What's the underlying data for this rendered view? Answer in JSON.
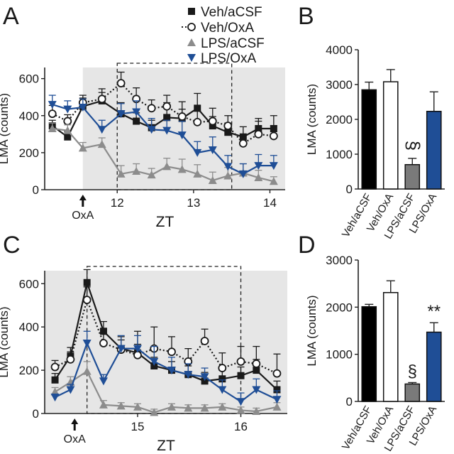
{
  "legend": {
    "entries": [
      {
        "label": "Veh/aCSF",
        "marker": "square-filled",
        "color": "#1a1a1a",
        "dash": false
      },
      {
        "label": "Veh/OxA",
        "marker": "circle-open",
        "color": "#1a1a1a",
        "dash": true
      },
      {
        "label": "LPS/aCSF",
        "marker": "triangle-up",
        "color": "#8c8c8c",
        "dash": false
      },
      {
        "label": "LPS/OxA",
        "marker": "triangle-down",
        "color": "#1f4e96",
        "dash": false
      }
    ]
  },
  "colors": {
    "veh_acsf": "#1a1a1a",
    "veh_oxa": "#1a1a1a",
    "lps_acsf": "#8c8c8c",
    "lps_oxa": "#1f4e96",
    "shade": "#e6e6e6"
  },
  "chart_data": [
    {
      "panel": "A",
      "type": "line",
      "ylabel": "LMA (counts)",
      "xlabel": "ZT",
      "xlim": [
        11.05,
        14.2
      ],
      "ylim": [
        0,
        660
      ],
      "xticks": [
        12,
        13,
        14
      ],
      "yticks": [
        0,
        200,
        400,
        600
      ],
      "shaded_range": [
        11.55,
        14.2
      ],
      "dashed_box_range": [
        12,
        13.5
      ],
      "annotation": "OxA",
      "annotation_x": 11.55,
      "x": [
        11.15,
        11.35,
        11.55,
        11.8,
        12.05,
        12.25,
        12.45,
        12.65,
        12.85,
        13.05,
        13.25,
        13.45,
        13.65,
        13.85,
        14.05
      ],
      "series": [
        {
          "name": "Veh/aCSF",
          "values": [
            345,
            285,
            450,
            480,
            410,
            370,
            335,
            390,
            385,
            440,
            345,
            310,
            285,
            330,
            330
          ],
          "err": [
            30,
            30,
            45,
            45,
            60,
            45,
            40,
            80,
            50,
            80,
            50,
            50,
            55,
            55,
            70
          ]
        },
        {
          "name": "Veh/OxA",
          "values": [
            410,
            370,
            470,
            490,
            575,
            490,
            440,
            450,
            395,
            365,
            370,
            345,
            250,
            300,
            290
          ],
          "err": [
            45,
            35,
            40,
            55,
            60,
            60,
            45,
            60,
            80,
            60,
            70,
            55,
            45,
            70,
            55
          ]
        },
        {
          "name": "LPS/aCSF",
          "values": [
            330,
            320,
            225,
            245,
            85,
            100,
            80,
            125,
            110,
            85,
            50,
            75,
            90,
            65,
            45
          ],
          "err": [
            30,
            30,
            30,
            35,
            45,
            40,
            35,
            45,
            55,
            50,
            45,
            45,
            50,
            40,
            25
          ]
        },
        {
          "name": "LPS/OxA",
          "values": [
            460,
            435,
            445,
            325,
            410,
            420,
            325,
            320,
            295,
            200,
            215,
            125,
            85,
            130,
            130
          ],
          "err": [
            50,
            45,
            45,
            50,
            55,
            60,
            60,
            55,
            75,
            60,
            70,
            60,
            55,
            60,
            55
          ]
        }
      ]
    },
    {
      "panel": "B",
      "type": "bar",
      "ylabel": "LMA (counts)",
      "ylim": [
        0,
        4000
      ],
      "yticks": [
        0,
        1000,
        2000,
        3000,
        4000
      ],
      "categories": [
        "Veh/aCSF",
        "Veh/OxA",
        "LPS/aCSF",
        "LPS/OxA"
      ],
      "values": [
        2850,
        3080,
        700,
        2230
      ],
      "err": [
        220,
        350,
        180,
        560
      ],
      "bar_colors": [
        "#000000",
        "#ffffff",
        "#7a7a7a",
        "#1f4e96"
      ],
      "significance": [
        "",
        "",
        "§",
        ""
      ]
    },
    {
      "panel": "C",
      "type": "line",
      "ylabel": "LMA (counts)",
      "xlabel": "ZT",
      "xlim": [
        14.1,
        16.45
      ],
      "ylim": [
        0,
        660
      ],
      "xticks": [
        15,
        16
      ],
      "yticks": [
        0,
        200,
        400,
        600
      ],
      "shaded_range": [
        14.1,
        16.45
      ],
      "dashed_box_range": [
        14.51,
        16
      ],
      "annotation": "OxA",
      "annotation_x": 14.39,
      "x": [
        14.2,
        14.35,
        14.51,
        14.67,
        14.84,
        15.0,
        15.16,
        15.33,
        15.49,
        15.65,
        15.82,
        16.0,
        16.15,
        16.35
      ],
      "series": [
        {
          "name": "Veh/aCSF",
          "values": [
            155,
            265,
            605,
            380,
            300,
            280,
            220,
            200,
            180,
            150,
            160,
            175,
            200,
            110
          ],
          "err": [
            30,
            40,
            60,
            45,
            40,
            40,
            40,
            40,
            40,
            40,
            40,
            40,
            50,
            40
          ]
        },
        {
          "name": "Veh/OxA",
          "values": [
            215,
            250,
            525,
            325,
            295,
            270,
            300,
            285,
            240,
            335,
            210,
            240,
            230,
            185
          ],
          "err": [
            30,
            35,
            60,
            65,
            60,
            110,
            100,
            70,
            60,
            55,
            70,
            70,
            80,
            90
          ]
        },
        {
          "name": "LPS/aCSF",
          "values": [
            100,
            145,
            195,
            40,
            35,
            30,
            5,
            30,
            25,
            25,
            30,
            15,
            10,
            30
          ],
          "err": [
            20,
            25,
            45,
            20,
            15,
            15,
            15,
            15,
            15,
            15,
            15,
            15,
            15,
            20
          ]
        },
        {
          "name": "LPS/OxA",
          "values": [
            75,
            110,
            325,
            150,
            300,
            300,
            240,
            200,
            180,
            170,
            110,
            55,
            110,
            65
          ],
          "err": [
            15,
            25,
            55,
            30,
            60,
            60,
            70,
            60,
            50,
            40,
            45,
            40,
            50,
            40
          ]
        }
      ]
    },
    {
      "panel": "D",
      "type": "bar",
      "ylabel": "LMA (counts)",
      "ylim": [
        0,
        3000
      ],
      "yticks": [
        0,
        1000,
        2000,
        3000
      ],
      "categories": [
        "Veh/aCSF",
        "Veh/OxA",
        "LPS/aCSF",
        "LPS/OxA"
      ],
      "values": [
        2010,
        2310,
        370,
        1470
      ],
      "err": [
        50,
        250,
        30,
        200
      ],
      "bar_colors": [
        "#000000",
        "#ffffff",
        "#7a7a7a",
        "#1f4e96"
      ],
      "significance": [
        "",
        "",
        "§",
        "**"
      ]
    }
  ],
  "panel_labels": {
    "a": "A",
    "b": "B",
    "c": "C",
    "d": "D"
  }
}
